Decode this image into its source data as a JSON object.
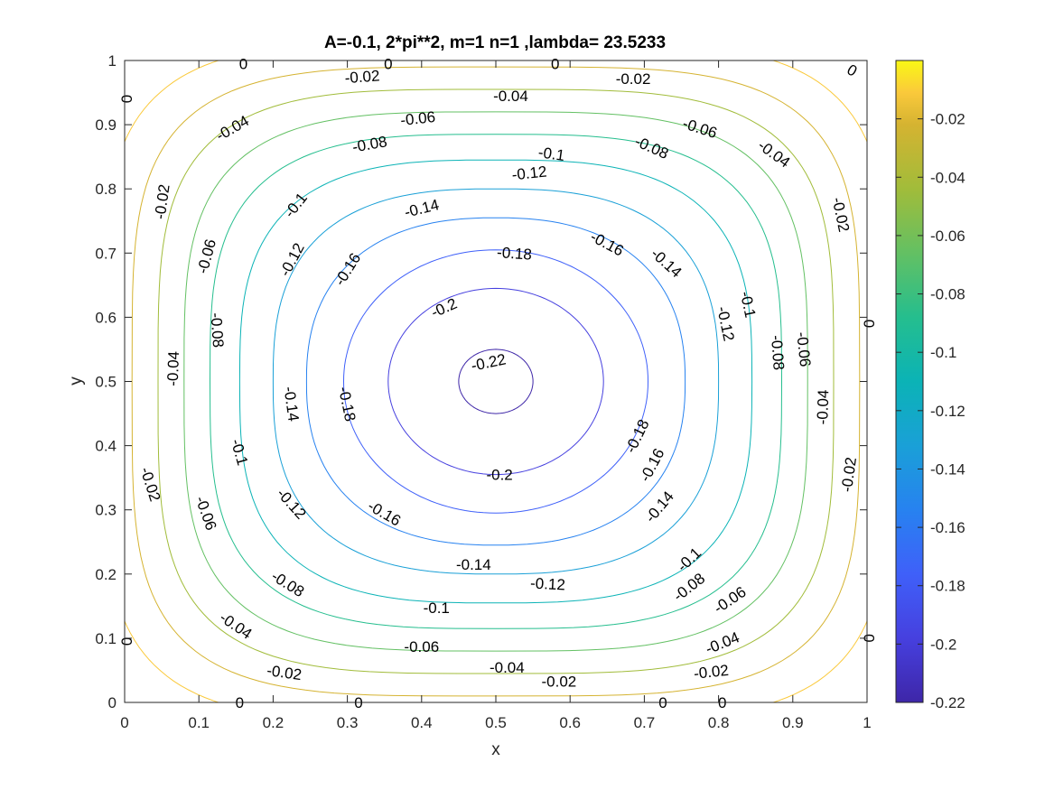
{
  "chart_data": {
    "type": "contour",
    "title": "A=-0.1, 2*pi**2, m=1 n=1 ,lambda= 23.5233",
    "xlabel": "x",
    "ylabel": "y",
    "xlim": [
      0,
      1
    ],
    "ylim": [
      0,
      1
    ],
    "xticks": [
      "0",
      "0.1",
      "0.2",
      "0.3",
      "0.4",
      "0.5",
      "0.6",
      "0.7",
      "0.8",
      "0.9",
      "1"
    ],
    "yticks": [
      "0",
      "0.1",
      "0.2",
      "0.3",
      "0.4",
      "0.5",
      "0.6",
      "0.7",
      "0.8",
      "0.9",
      "1"
    ],
    "grid": false,
    "colormap": "parula",
    "colorbar": {
      "range": [
        -0.22,
        0
      ],
      "ticks": [
        "-0.02",
        "-0.04",
        "-0.06",
        "-0.08",
        "-0.1",
        "-0.12",
        "-0.14",
        "-0.16",
        "-0.18",
        "-0.2",
        "-0.22"
      ]
    },
    "levels": [
      {
        "value": -0.22,
        "color": "#3e26a8",
        "label": "-0.22",
        "radius": 0.05,
        "labels_at": [
          [
            0.49,
            0.53,
            -12
          ]
        ]
      },
      {
        "value": -0.2,
        "color": "#4640df",
        "label": "-0.2",
        "radius": 0.145,
        "labels_at": [
          [
            0.43,
            0.615,
            -24
          ],
          [
            0.505,
            0.355,
            0
          ]
        ]
      },
      {
        "value": -0.18,
        "color": "#3f60f9",
        "label": "-0.18",
        "radius": 0.205,
        "labels_at": [
          [
            0.525,
            0.7,
            4
          ],
          [
            0.3,
            0.465,
            78
          ],
          [
            0.69,
            0.415,
            -64
          ]
        ]
      },
      {
        "value": -0.16,
        "color": "#2782f0",
        "label": "-0.16",
        "radius": 0.255,
        "labels_at": [
          [
            0.3,
            0.675,
            -58
          ],
          [
            0.65,
            0.715,
            28
          ],
          [
            0.35,
            0.295,
            30
          ],
          [
            0.71,
            0.37,
            -62
          ]
        ]
      },
      {
        "value": -0.14,
        "color": "#1aa0d7",
        "label": "-0.14",
        "radius": 0.3,
        "labels_at": [
          [
            0.4,
            0.77,
            -14
          ],
          [
            0.73,
            0.685,
            42
          ],
          [
            0.225,
            0.465,
            82
          ],
          [
            0.47,
            0.215,
            0
          ],
          [
            0.72,
            0.305,
            -50
          ]
        ]
      },
      {
        "value": -0.12,
        "color": "#0bb3b6",
        "label": "-0.12",
        "radius": 0.345,
        "labels_at": [
          [
            0.545,
            0.825,
            -6
          ],
          [
            0.225,
            0.69,
            -62
          ],
          [
            0.81,
            0.59,
            78
          ],
          [
            0.225,
            0.31,
            48
          ],
          [
            0.57,
            0.185,
            3
          ]
        ]
      },
      {
        "value": -0.1,
        "color": "#25be8e",
        "label": "-0.1",
        "radius": 0.385,
        "labels_at": [
          [
            0.575,
            0.855,
            8
          ],
          [
            0.23,
            0.775,
            -52
          ],
          [
            0.84,
            0.62,
            78
          ],
          [
            0.155,
            0.39,
            74
          ],
          [
            0.42,
            0.148,
            0
          ],
          [
            0.76,
            0.223,
            -44
          ]
        ]
      },
      {
        "value": -0.08,
        "color": "#63c063",
        "label": "-0.08",
        "radius": 0.42,
        "labels_at": [
          [
            0.33,
            0.87,
            -10
          ],
          [
            0.71,
            0.865,
            24
          ],
          [
            0.125,
            0.58,
            86
          ],
          [
            0.88,
            0.545,
            86
          ],
          [
            0.22,
            0.185,
            32
          ],
          [
            0.76,
            0.18,
            -38
          ]
        ]
      },
      {
        "value": -0.06,
        "color": "#a1bc3a",
        "label": "-0.06",
        "radius": 0.455,
        "labels_at": [
          [
            0.395,
            0.91,
            -6
          ],
          [
            0.775,
            0.895,
            18
          ],
          [
            0.11,
            0.695,
            -75
          ],
          [
            0.915,
            0.55,
            84
          ],
          [
            0.11,
            0.295,
            70
          ],
          [
            0.4,
            0.087,
            0
          ],
          [
            0.815,
            0.16,
            -34
          ]
        ]
      },
      {
        "value": -0.04,
        "color": "#d5b331",
        "label": "-0.04",
        "radius": 0.49,
        "labels_at": [
          [
            0.52,
            0.945,
            0
          ],
          [
            0.145,
            0.895,
            -30
          ],
          [
            0.875,
            0.855,
            36
          ],
          [
            0.065,
            0.52,
            -88
          ],
          [
            0.94,
            0.46,
            -88
          ],
          [
            0.15,
            0.12,
            34
          ],
          [
            0.515,
            0.055,
            0
          ],
          [
            0.805,
            0.093,
            -22
          ]
        ]
      },
      {
        "value": -0.02,
        "color": "#fac93b",
        "label": "-0.02",
        "radius": 0.53,
        "labels_at": [
          [
            0.32,
            0.975,
            -4
          ],
          [
            0.685,
            0.972,
            0
          ],
          [
            0.05,
            0.78,
            -82
          ],
          [
            0.965,
            0.76,
            78
          ],
          [
            0.035,
            0.34,
            72
          ],
          [
            0.975,
            0.355,
            -82
          ],
          [
            0.215,
            0.047,
            8
          ],
          [
            0.585,
            0.033,
            0
          ],
          [
            0.79,
            0.048,
            -6
          ]
        ]
      },
      {
        "value": 0,
        "color": "#f9f815",
        "label": "0",
        "radius": 0.62,
        "labels_at": [
          [
            0.16,
            0.995,
            0
          ],
          [
            0.355,
            0.995,
            0
          ],
          [
            0.58,
            0.995,
            0
          ],
          [
            0.98,
            0.985,
            30
          ],
          [
            0.003,
            0.94,
            90
          ],
          [
            1.003,
            0.59,
            90
          ],
          [
            0.003,
            0.095,
            90
          ],
          [
            1.003,
            0.1,
            90
          ],
          [
            0.155,
            0.0,
            0
          ],
          [
            0.315,
            0.0,
            0
          ],
          [
            0.725,
            0.0,
            0
          ],
          [
            0.805,
            0.0,
            0
          ]
        ]
      }
    ]
  }
}
